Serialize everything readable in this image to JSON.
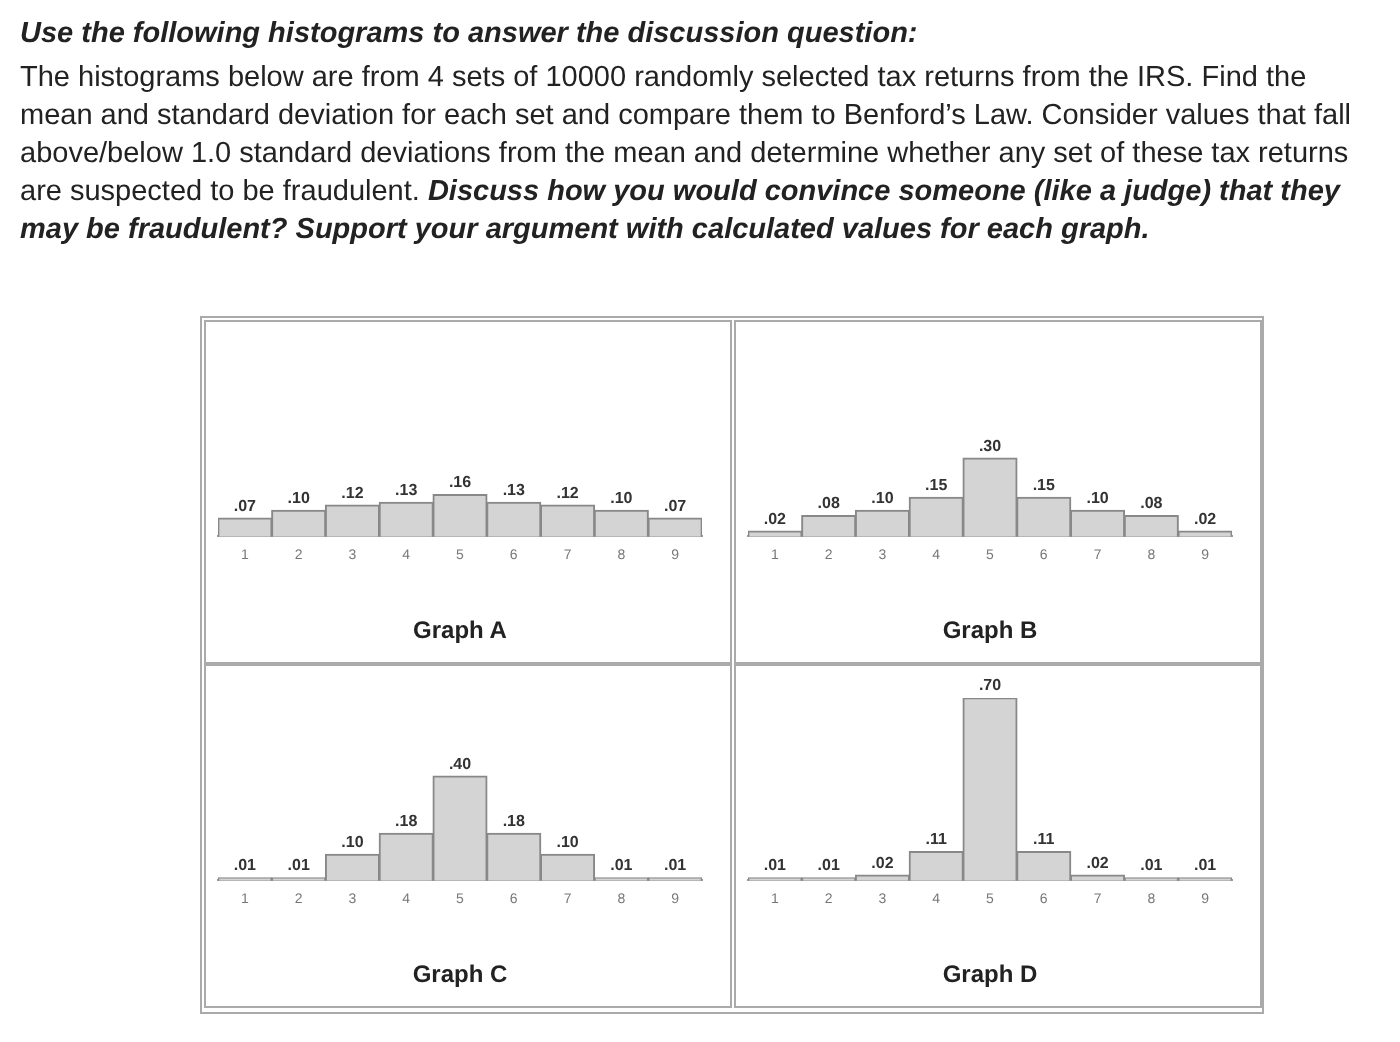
{
  "chart_data": [
    {
      "type": "bar",
      "title": "Use the following histograms to answer the discussion question:",
      "subtitle": "The histograms below are from 4 sets of 10000 randomly selected tax returns from the IRS. Find the mean and standard deviation for each set and compare them to Benford’s Law. Consider values that fall above/below 1.0 standard deviations from the mean and determine whether any set of these tax returns are suspected to be fraudulent.",
      "annotations": [
        "Discuss how you would convince someone (like a judge) that they may be fraudulent? Support your argument with calculated values for each graph."
      ],
      "xlabel": "Graph A",
      "categories": [
        "1",
        "2",
        "3",
        "4",
        "5",
        "6",
        "7",
        "8",
        "9"
      ],
      "color": "#d4d4d4",
      "values": [
        0.07,
        0.1,
        0.12,
        0.13,
        0.16,
        0.13,
        0.12,
        0.1,
        0.07
      ],
      "value_labels": [
        ".07",
        ".10",
        ".12",
        ".13",
        ".16",
        ".13",
        ".12",
        ".10",
        ".07"
      ]
    },
    {
      "type": "bar",
      "xlabel": "Graph B",
      "categories": [
        "1",
        "2",
        "3",
        "4",
        "5",
        "6",
        "7",
        "8",
        "9"
      ],
      "color": "#d4d4d4",
      "values": [
        0.02,
        0.08,
        0.1,
        0.15,
        0.3,
        0.15,
        0.1,
        0.08,
        0.02
      ],
      "value_labels": [
        ".02",
        ".08",
        ".10",
        ".15",
        ".30",
        ".15",
        ".10",
        ".08",
        ".02"
      ]
    },
    {
      "type": "bar",
      "xlabel": "Graph C",
      "categories": [
        "1",
        "2",
        "3",
        "4",
        "5",
        "6",
        "7",
        "8",
        "9"
      ],
      "color": "#d4d4d4",
      "values": [
        0.01,
        0.01,
        0.1,
        0.18,
        0.4,
        0.18,
        0.1,
        0.01,
        0.01
      ],
      "value_labels": [
        ".01",
        ".01",
        ".10",
        ".18",
        ".40",
        ".18",
        ".10",
        ".01",
        ".01"
      ]
    },
    {
      "type": "bar",
      "xlabel": "Graph D",
      "categories": [
        "1",
        "2",
        "3",
        "4",
        "5",
        "6",
        "7",
        "8",
        "9"
      ],
      "color": "#d4d4d4",
      "values": [
        0.01,
        0.01,
        0.02,
        0.11,
        0.7,
        0.11,
        0.02,
        0.01,
        0.01
      ],
      "value_labels": [
        ".01",
        ".01",
        ".02",
        ".11",
        ".70",
        ".11",
        ".02",
        ".01",
        ".01"
      ]
    }
  ]
}
